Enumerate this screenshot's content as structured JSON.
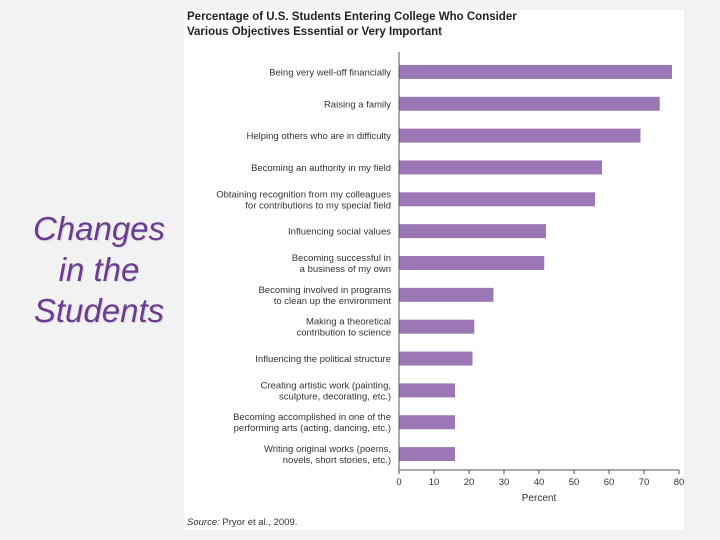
{
  "slide": {
    "title_lines": [
      "Changes",
      "in the",
      "Students"
    ]
  },
  "chart_data": {
    "type": "bar",
    "orientation": "horizontal",
    "title_lines": [
      "Percentage of U.S. Students Entering College Who Consider",
      "Various Objectives Essential or Very Important"
    ],
    "categories": [
      [
        "Being very well-off financially"
      ],
      [
        "Raising a family"
      ],
      [
        "Helping others who are in difficulty"
      ],
      [
        "Becoming an authority in my field"
      ],
      [
        "Obtaining recognition from my colleagues",
        "for contributions to my special field"
      ],
      [
        "Influencing social values"
      ],
      [
        "Becoming successful in",
        "a business of my own"
      ],
      [
        "Becoming involved in programs",
        "to clean up the environment"
      ],
      [
        "Making a theoretical",
        "contribution to science"
      ],
      [
        "Influencing the political structure"
      ],
      [
        "Creating artistic work (painting,",
        "sculpture, decorating, etc.)"
      ],
      [
        "Becoming accomplished in one of the",
        "performing arts (acting, dancing, etc.)"
      ],
      [
        "Writing original works (poems,",
        "novels, short stories, etc.)"
      ]
    ],
    "values": [
      78,
      74.5,
      69,
      58,
      56,
      42,
      41.5,
      27,
      21.5,
      21,
      16,
      16,
      16
    ],
    "xlabel": "Percent",
    "xlim": [
      0,
      80
    ],
    "xticks": [
      0,
      10,
      20,
      30,
      40,
      50,
      60,
      70,
      80
    ],
    "grid": false,
    "colors": {
      "bar": "#9b77b5",
      "axis": "#555555",
      "text": "#333333"
    }
  },
  "source": {
    "label": "Source:",
    "text": "Pryor et al., 2009."
  }
}
